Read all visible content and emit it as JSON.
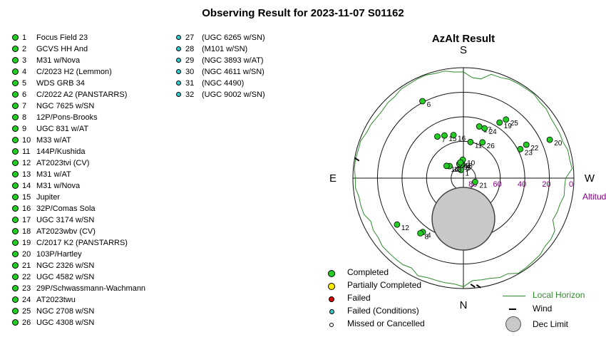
{
  "title": "Observing Result for 2023-11-07  S01162",
  "targets": [
    {
      "n": "1",
      "name": "Focus Field 23",
      "status": "completed"
    },
    {
      "n": "2",
      "name": "GCVS HH And",
      "status": "completed"
    },
    {
      "n": "3",
      "name": "M31 w/Nova",
      "status": "completed"
    },
    {
      "n": "4",
      "name": "C/2023 H2 (Lemmon)",
      "status": "completed"
    },
    {
      "n": "5",
      "name": "WDS GRB 34",
      "status": "completed"
    },
    {
      "n": "6",
      "name": "C/2022 A2 (PANSTARRS)",
      "status": "completed"
    },
    {
      "n": "7",
      "name": "NGC 7625 w/SN",
      "status": "completed"
    },
    {
      "n": "8",
      "name": "12P/Pons-Brooks",
      "status": "completed"
    },
    {
      "n": "9",
      "name": "UGC 831 w/AT",
      "status": "completed"
    },
    {
      "n": "10",
      "name": "M33 w/AT",
      "status": "completed"
    },
    {
      "n": "11",
      "name": "144P/Kushida",
      "status": "completed"
    },
    {
      "n": "12",
      "name": "AT2023tvi (CV)",
      "status": "completed"
    },
    {
      "n": "13",
      "name": "M31 w/AT",
      "status": "completed"
    },
    {
      "n": "14",
      "name": "M31 w/Nova",
      "status": "completed"
    },
    {
      "n": "15",
      "name": "Jupiter",
      "status": "completed"
    },
    {
      "n": "16",
      "name": "32P/Comas Sola",
      "status": "completed"
    },
    {
      "n": "17",
      "name": "UGC 3174 w/SN",
      "status": "completed"
    },
    {
      "n": "18",
      "name": "AT2023wbv (CV)",
      "status": "completed"
    },
    {
      "n": "19",
      "name": "C/2017 K2 (PANSTARRS)",
      "status": "completed"
    },
    {
      "n": "20",
      "name": "103P/Hartley",
      "status": "completed"
    },
    {
      "n": "21",
      "name": "NGC 2326 w/SN",
      "status": "completed"
    },
    {
      "n": "22",
      "name": "UGC 4582 w/SN",
      "status": "completed"
    },
    {
      "n": "23",
      "name": "29P/Schwassmann-Wachmann",
      "status": "completed"
    },
    {
      "n": "24",
      "name": "AT2023twu",
      "status": "completed"
    },
    {
      "n": "25",
      "name": "NGC 2708 w/SN",
      "status": "completed"
    },
    {
      "n": "26",
      "name": "UGC 4308 w/SN",
      "status": "completed"
    },
    {
      "n": "27",
      "name": "(UGC 6265 w/SN)",
      "status": "failed_conditions"
    },
    {
      "n": "28",
      "name": "(M101 w/SN)",
      "status": "failed_conditions"
    },
    {
      "n": "29",
      "name": "(NGC 3893 w/AT)",
      "status": "failed_conditions"
    },
    {
      "n": "30",
      "name": "(NGC 4611 w/SN)",
      "status": "failed_conditions"
    },
    {
      "n": "31",
      "name": "(NGC 4490)",
      "status": "failed_conditions"
    },
    {
      "n": "32",
      "name": "(UGC 9002 w/SN)",
      "status": "failed_conditions"
    }
  ],
  "colors": {
    "completed": "#22cc22",
    "partial": "#ffee00",
    "failed": "#dd0000",
    "failed_conditions": "#33cccc",
    "missed": "#ffffff",
    "horizon": "#2e8b2e",
    "altitude_text": "#800080",
    "dec_limit": "#c8c8c8"
  },
  "legend": {
    "completed": "Completed",
    "partial": "Partially Completed",
    "failed": "Failed",
    "failed_conditions": "Failed (Conditions)",
    "missed": "Missed or Cancelled",
    "horizon": "Local Horizon",
    "wind": "Wind",
    "dec_limit": "Dec Limit"
  },
  "chart_data": {
    "type": "scatter",
    "projection": "polar-azalt",
    "title": "AzAlt Result",
    "directions": {
      "north": "N",
      "south": "S",
      "east": "E",
      "west": "W"
    },
    "altitude_label": "Altitude",
    "altitude_ticks": [
      "80",
      "60",
      "40",
      "20",
      "0"
    ],
    "altitude_rings_deg": [
      80,
      60,
      40,
      20,
      0
    ],
    "points": [
      {
        "label": "1",
        "az": 163,
        "alt": 83
      },
      {
        "label": "2",
        "az": 174,
        "alt": 77
      },
      {
        "label": "3",
        "az": 176,
        "alt": 79
      },
      {
        "label": "4",
        "az": 37,
        "alt": 35
      },
      {
        "label": "5",
        "az": 171,
        "alt": 79
      },
      {
        "label": "6",
        "az": 152,
        "alt": 19
      },
      {
        "label": "7",
        "az": 148,
        "alt": 50
      },
      {
        "label": "8",
        "az": 38,
        "alt": 33
      },
      {
        "label": "9",
        "az": 164,
        "alt": 78
      },
      {
        "label": "10",
        "az": 178,
        "alt": 75
      },
      {
        "label": "11",
        "az": 191,
        "alt": 60
      },
      {
        "label": "12",
        "az": 55,
        "alt": 24
      },
      {
        "label": "13",
        "az": 131,
        "alt": 75
      },
      {
        "label": "14",
        "az": 126,
        "alt": 73
      },
      {
        "label": "15",
        "az": 156,
        "alt": 52
      },
      {
        "label": "16",
        "az": 167,
        "alt": 54
      },
      {
        "label": "17",
        "az": 197,
        "alt": 46
      },
      {
        "label": "18",
        "az": 169,
        "alt": 77
      },
      {
        "label": "19",
        "az": 213,
        "alt": 36
      },
      {
        "label": "20",
        "az": 246,
        "alt": 13
      },
      {
        "label": "21",
        "az": 288,
        "alt": 80
      },
      {
        "label": "22",
        "az": 242,
        "alt": 32
      },
      {
        "label": "23",
        "az": 243,
        "alt": 38
      },
      {
        "label": "24",
        "az": 203,
        "alt": 46
      },
      {
        "label": "25",
        "az": 216,
        "alt": 31
      },
      {
        "label": "26",
        "az": 208,
        "alt": 57
      }
    ],
    "wind_markers": 3,
    "dec_limit": "circle"
  }
}
